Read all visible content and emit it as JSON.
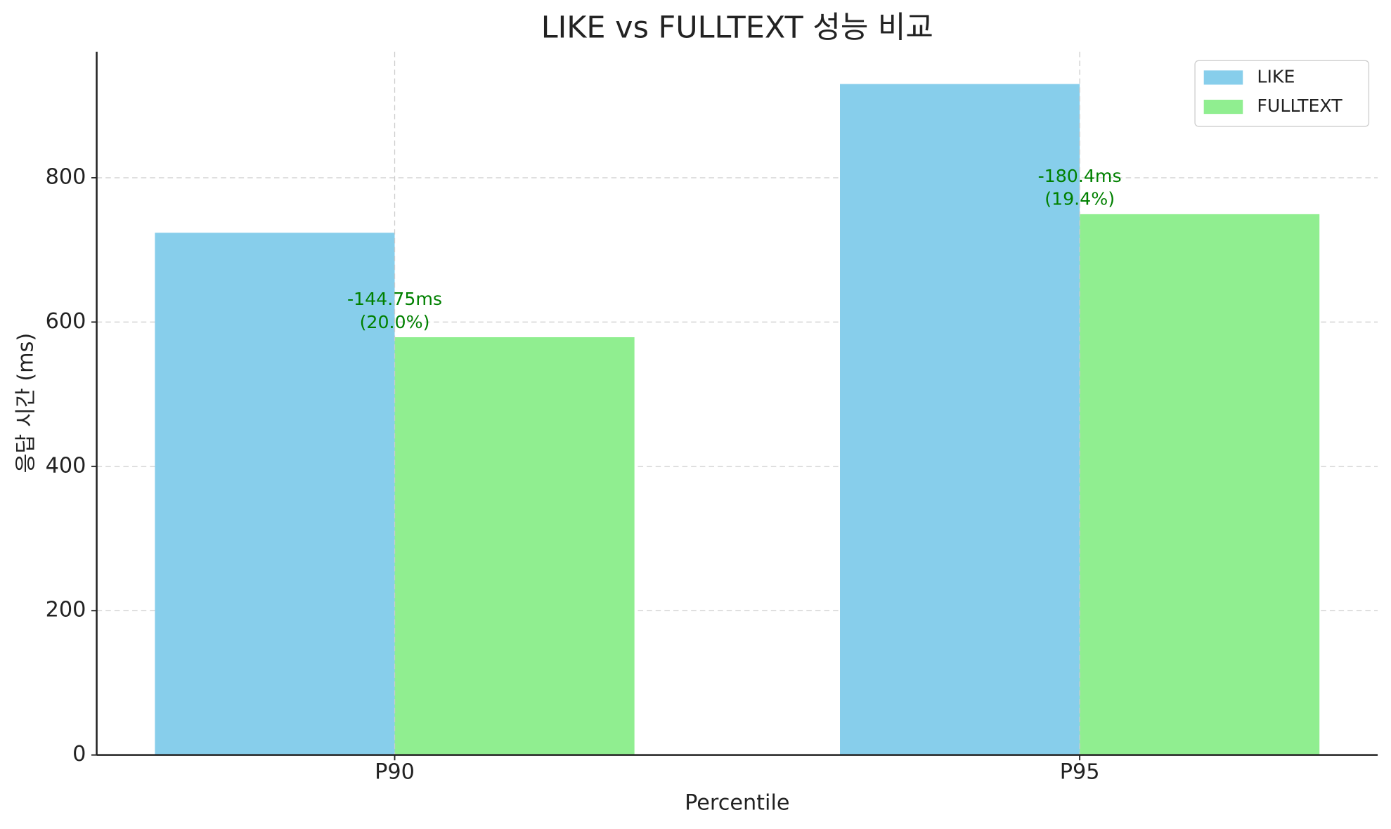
{
  "chart_data": {
    "type": "bar",
    "title": "LIKE vs FULLTEXT 성능 비교",
    "xlabel": "Percentile",
    "ylabel": "응답 시간 (ms)",
    "categories": [
      "P90",
      "P95"
    ],
    "series": [
      {
        "name": "LIKE",
        "color": "#87ceeb",
        "values": [
          723.75,
          929.9
        ]
      },
      {
        "name": "FULLTEXT",
        "color": "#90ee90",
        "values": [
          579,
          749.5
        ]
      }
    ],
    "annotations": [
      [
        "-144.75ms",
        "(20.0%)"
      ],
      [
        "-180.4ms",
        "(19.4%)"
      ]
    ],
    "annotation_color": "#008000",
    "ylim": [
      0,
      974.5
    ],
    "yticks": [
      0,
      200,
      400,
      600,
      800
    ],
    "grid": true,
    "legend": "upper right"
  }
}
